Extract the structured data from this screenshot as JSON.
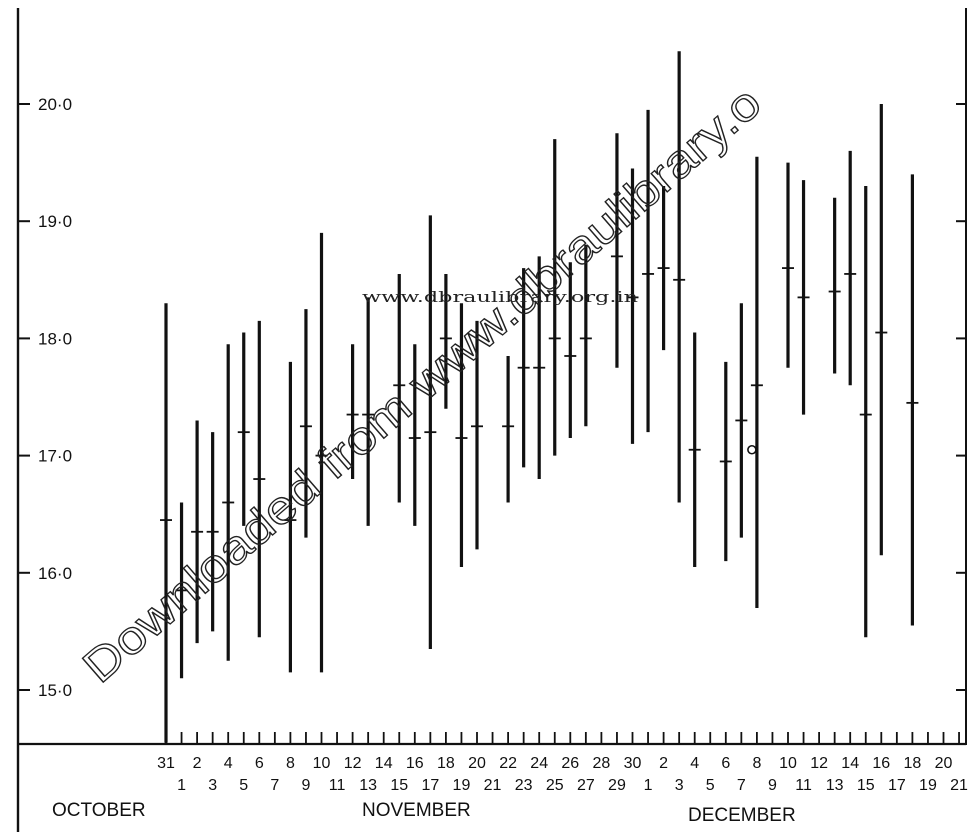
{
  "chart_data": {
    "type": "range",
    "ylim": [
      14.55,
      20.95
    ],
    "yticks": [
      {
        "value": 15.0,
        "label": "15·0"
      },
      {
        "value": 16.0,
        "label": "16·0"
      },
      {
        "value": 17.0,
        "label": "17·0"
      },
      {
        "value": 18.0,
        "label": "18·0"
      },
      {
        "value": 19.0,
        "label": "19·0"
      },
      {
        "value": 20.0,
        "label": "20·0"
      }
    ],
    "x_tick_labels_upper": [
      "31",
      "2",
      "4",
      "6",
      "8",
      "10",
      "12",
      "14",
      "16",
      "18",
      "20",
      "22",
      "24",
      "26",
      "28",
      "30",
      "2",
      "4",
      "6",
      "8",
      "10",
      "12",
      "14",
      "16",
      "18",
      "20"
    ],
    "x_tick_labels_lower": [
      "1",
      "3",
      "5",
      "7",
      "9",
      "11",
      "13",
      "15",
      "17",
      "19",
      "21",
      "23",
      "25",
      "27",
      "29",
      "1",
      "3",
      "5",
      "7",
      "9",
      "11",
      "13",
      "15",
      "17",
      "19",
      "21"
    ],
    "month_labels": [
      "OCTOBER",
      "NOVEMBER",
      "DECEMBER"
    ],
    "series": [
      {
        "x": 0,
        "low": 14.55,
        "high": 18.3,
        "mark": 16.45
      },
      {
        "x": 1,
        "low": 15.1,
        "high": 16.6,
        "mark": 15.85
      },
      {
        "x": 2,
        "low": 15.4,
        "high": 17.3,
        "mark": 16.35
      },
      {
        "x": 3,
        "low": 15.5,
        "high": 17.2,
        "mark": 16.35
      },
      {
        "x": 4,
        "low": 15.25,
        "high": 17.95,
        "mark": 16.6
      },
      {
        "x": 5,
        "low": 16.4,
        "high": 18.05,
        "mark": 17.2
      },
      {
        "x": 6,
        "low": 15.45,
        "high": 18.15,
        "mark": 16.8
      },
      {
        "x": 8,
        "low": 15.15,
        "high": 17.8,
        "mark": 16.45
      },
      {
        "x": 9,
        "low": 16.3,
        "high": 18.25,
        "mark": 17.25
      },
      {
        "x": 10,
        "low": 15.15,
        "high": 18.9,
        "mark": 17.0
      },
      {
        "x": 12,
        "low": 16.8,
        "high": 17.95,
        "mark": 17.35
      },
      {
        "x": 13,
        "low": 16.4,
        "high": 18.35,
        "mark": 17.35
      },
      {
        "x": 15,
        "low": 16.6,
        "high": 18.55,
        "mark": 17.6
      },
      {
        "x": 16,
        "low": 16.4,
        "high": 17.95,
        "mark": 17.15
      },
      {
        "x": 17,
        "low": 15.35,
        "high": 19.05,
        "mark": 17.2
      },
      {
        "x": 18,
        "low": 17.4,
        "high": 18.55,
        "mark": 18.0
      },
      {
        "x": 19,
        "low": 16.05,
        "high": 18.3,
        "mark": 17.15
      },
      {
        "x": 20,
        "low": 16.2,
        "high": 18.15,
        "mark": 17.25
      },
      {
        "x": 22,
        "low": 16.6,
        "high": 17.85,
        "mark": 17.25
      },
      {
        "x": 23,
        "low": 16.9,
        "high": 18.6,
        "mark": 17.75
      },
      {
        "x": 24,
        "low": 16.8,
        "high": 18.7,
        "mark": 17.75
      },
      {
        "x": 25,
        "low": 17.0,
        "high": 19.7,
        "mark": 18.0
      },
      {
        "x": 26,
        "low": 17.15,
        "high": 18.65,
        "mark": 17.85
      },
      {
        "x": 27,
        "low": 17.25,
        "high": 18.8,
        "mark": 18.0
      },
      {
        "x": 29,
        "low": 17.75,
        "high": 19.75,
        "mark": 18.7
      },
      {
        "x": 30,
        "low": 17.1,
        "high": 19.45,
        "mark": 18.35
      },
      {
        "x": 31,
        "low": 17.2,
        "high": 19.95,
        "mark": 18.55
      },
      {
        "x": 32,
        "low": 17.9,
        "high": 19.3,
        "mark": 18.6
      },
      {
        "x": 33,
        "low": 16.6,
        "high": 20.45,
        "mark": 18.5
      },
      {
        "x": 34,
        "low": 16.05,
        "high": 18.05,
        "mark": 17.05
      },
      {
        "x": 36,
        "low": 16.1,
        "high": 17.8,
        "mark": 16.95
      },
      {
        "x": 37,
        "low": 16.3,
        "high": 18.3,
        "mark": 17.3
      },
      {
        "x": 38,
        "low": 15.7,
        "high": 19.55,
        "mark": 17.6
      },
      {
        "x": 40,
        "low": 17.75,
        "high": 19.5,
        "mark": 18.6
      },
      {
        "x": 41,
        "low": 17.35,
        "high": 19.35,
        "mark": 18.35
      },
      {
        "x": 43,
        "low": 17.7,
        "high": 19.2,
        "mark": 18.4
      },
      {
        "x": 44,
        "low": 17.6,
        "high": 19.6,
        "mark": 18.55
      },
      {
        "x": 45,
        "low": 15.45,
        "high": 19.3,
        "mark": 17.35
      },
      {
        "x": 46,
        "low": 16.15,
        "high": 20.0,
        "mark": 18.05
      },
      {
        "x": 48,
        "low": 15.55,
        "high": 19.4,
        "mark": 17.45
      }
    ],
    "open_points": [
      {
        "x": 38,
        "y": 17.05
      }
    ]
  },
  "watermarks": {
    "url": "www.dbraulibrary.org.in",
    "diagonal": "Downloaded from www.dbraulibrary.o"
  }
}
